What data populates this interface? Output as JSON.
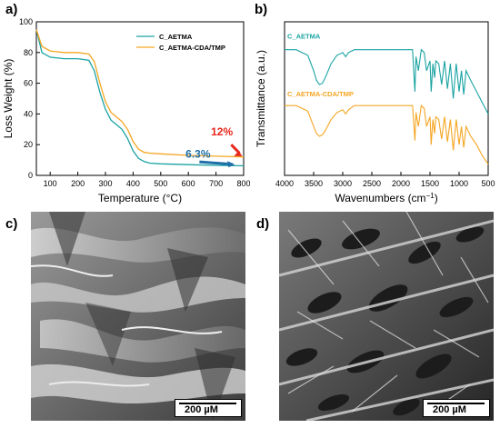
{
  "panels": {
    "a": "a)",
    "b": "b)",
    "c": "c)",
    "d": "d)"
  },
  "chart_data": [
    {
      "type": "line",
      "xlabel": "Temperature (°C)",
      "ylabel": "Loss Weight (%)",
      "xlim": [
        50,
        800
      ],
      "ylim": [
        0,
        100
      ],
      "xticks": [
        100,
        200,
        300,
        400,
        500,
        600,
        700,
        800
      ],
      "yticks": [
        0,
        20,
        40,
        60,
        80,
        100
      ],
      "legend_position": "top-right",
      "series": [
        {
          "name": "C_AETMA",
          "color": "#1aa3a3",
          "x": [
            50,
            70,
            100,
            150,
            200,
            240,
            260,
            280,
            300,
            320,
            340,
            360,
            380,
            400,
            420,
            440,
            460,
            500,
            600,
            700,
            800
          ],
          "y": [
            95,
            80,
            77,
            76,
            76,
            75,
            68,
            54,
            43,
            36,
            33,
            30,
            24,
            16,
            11,
            9,
            8,
            7.5,
            7,
            6.5,
            6.3
          ]
        },
        {
          "name": "C_AETMA-CDA/TMP",
          "color": "#f5a623",
          "x": [
            50,
            70,
            100,
            150,
            200,
            240,
            260,
            280,
            300,
            320,
            340,
            360,
            380,
            400,
            420,
            440,
            460,
            500,
            600,
            700,
            800
          ],
          "y": [
            95,
            84,
            81,
            80,
            80,
            79,
            74,
            60,
            48,
            41,
            38,
            35,
            30,
            22,
            17,
            15,
            14.5,
            14,
            13,
            12.5,
            12
          ]
        }
      ],
      "annotations": [
        "6.3%",
        "12%"
      ],
      "annotation_colors": [
        "#1f6fa8",
        "#e8261c"
      ]
    },
    {
      "type": "line",
      "xlabel": "Wavenumbers (cm",
      "xlabel_sup": "−1",
      "xlabel_close": ")",
      "ylabel": "Transmittance (a.u.)",
      "xlim": [
        4000,
        500
      ],
      "xticks": [
        4000,
        3500,
        3000,
        2500,
        2000,
        1500,
        1000,
        500
      ],
      "series": [
        {
          "name": "C_AETMA",
          "color": "#1aa3a3",
          "x": [
            4000,
            3800,
            3600,
            3500,
            3450,
            3400,
            3350,
            3300,
            3200,
            3100,
            3000,
            2950,
            2900,
            2800,
            2500,
            2000,
            1800,
            1760,
            1740,
            1700,
            1650,
            1600,
            1560,
            1500,
            1480,
            1450,
            1420,
            1400,
            1350,
            1300,
            1250,
            1200,
            1150,
            1100,
            1050,
            1000,
            960,
            920,
            880,
            800,
            700,
            600,
            500
          ],
          "y": [
            70,
            70,
            66,
            55,
            48,
            45,
            46,
            50,
            60,
            66,
            68,
            65,
            68,
            70,
            70,
            70,
            70,
            40,
            65,
            55,
            70,
            68,
            55,
            62,
            40,
            60,
            50,
            62,
            60,
            45,
            62,
            42,
            60,
            35,
            60,
            40,
            55,
            38,
            55,
            48,
            40,
            32,
            24
          ]
        },
        {
          "name": "C_AETMA-CDA/TMP",
          "color": "#f5a623",
          "x": [
            4000,
            3800,
            3600,
            3500,
            3450,
            3400,
            3350,
            3300,
            3200,
            3100,
            3000,
            2950,
            2900,
            2800,
            2500,
            2000,
            1800,
            1760,
            1740,
            1700,
            1650,
            1600,
            1560,
            1500,
            1480,
            1450,
            1420,
            1400,
            1350,
            1300,
            1250,
            1200,
            1150,
            1100,
            1050,
            1000,
            960,
            920,
            880,
            800,
            700,
            600,
            500
          ],
          "y": [
            30,
            30,
            26,
            15,
            10,
            8,
            9,
            12,
            20,
            25,
            27,
            24,
            27,
            30,
            30,
            30,
            30,
            5,
            25,
            15,
            30,
            28,
            15,
            22,
            2,
            20,
            10,
            22,
            20,
            6,
            22,
            4,
            20,
            -2,
            20,
            2,
            15,
            0,
            15,
            8,
            2,
            -6,
            -12
          ]
        }
      ]
    }
  ],
  "sem_images": [
    {
      "scale_label": "200 µM"
    },
    {
      "scale_label": "200 µM"
    }
  ]
}
